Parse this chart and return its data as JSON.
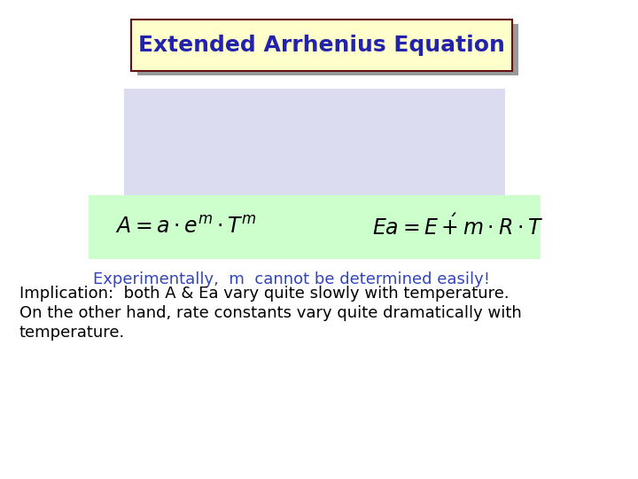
{
  "title": "Extended Arrhenius Equation",
  "title_color": "#2222aa",
  "title_bg_color": "#ffffcc",
  "title_border_color": "#661111",
  "title_shadow_color": "#999999",
  "blue_box_color": "#dcdcf0",
  "green_box_color": "#ccffcc",
  "experimental_text": "Experimentally,  m  cannot be determined easily!",
  "experimental_color": "#3344bb",
  "implication_line1": "Implication:  both A & Ea vary quite slowly with temperature.",
  "implication_line2": "On the other hand, rate constants vary quite dramatically with",
  "implication_line3": "temperature.",
  "implication_color": "#000000",
  "bg_color": "#ffffff",
  "title_fontsize": 18,
  "formula_fontsize": 17,
  "experimental_fontsize": 13,
  "implication_fontsize": 13
}
